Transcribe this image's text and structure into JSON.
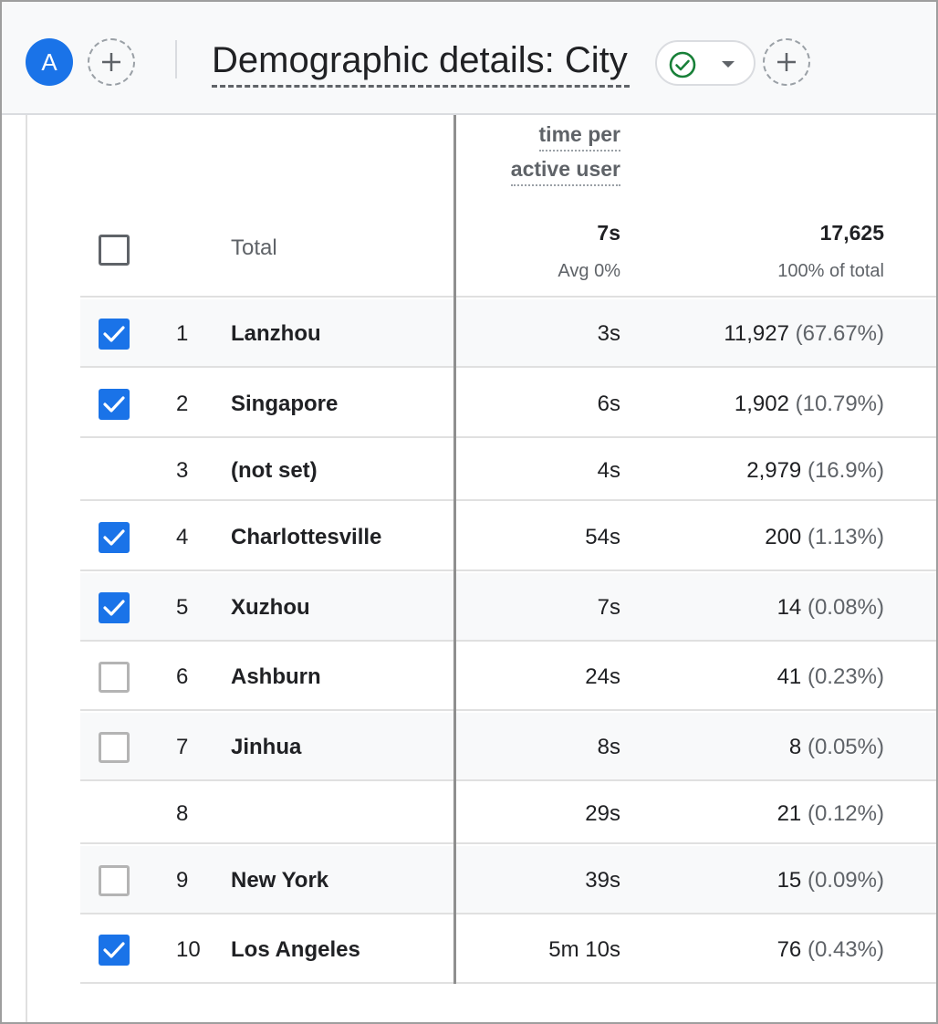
{
  "header": {
    "avatar_letter": "A",
    "title": "Demographic details: City"
  },
  "table": {
    "metric_header": [
      "time per",
      "active user"
    ],
    "total": {
      "label": "Total",
      "time": "7s",
      "time_sub": "Avg 0%",
      "users": "17,625",
      "users_sub": "100% of total"
    },
    "rows": [
      {
        "rank": "1",
        "city": "Lanzhou",
        "time": "3s",
        "users": "11,927",
        "pct": "(67.67%)",
        "checkbox": "checked"
      },
      {
        "rank": "2",
        "city": "Singapore",
        "time": "6s",
        "users": "1,902",
        "pct": "(10.79%)",
        "checkbox": "checked"
      },
      {
        "rank": "3",
        "city": "(not set)",
        "time": "4s",
        "users": "2,979",
        "pct": "(16.9%)",
        "checkbox": "none"
      },
      {
        "rank": "4",
        "city": "Charlottesville",
        "time": "54s",
        "users": "200",
        "pct": "(1.13%)",
        "checkbox": "checked"
      },
      {
        "rank": "5",
        "city": "Xuzhou",
        "time": "7s",
        "users": "14",
        "pct": "(0.08%)",
        "checkbox": "checked"
      },
      {
        "rank": "6",
        "city": "Ashburn",
        "time": "24s",
        "users": "41",
        "pct": "(0.23%)",
        "checkbox": "unchecked"
      },
      {
        "rank": "7",
        "city": "Jinhua",
        "time": "8s",
        "users": "8",
        "pct": "(0.05%)",
        "checkbox": "unchecked"
      },
      {
        "rank": "8",
        "city": "",
        "time": "29s",
        "users": "21",
        "pct": "(0.12%)",
        "checkbox": "none"
      },
      {
        "rank": "9",
        "city": "New York",
        "time": "39s",
        "users": "15",
        "pct": "(0.09%)",
        "checkbox": "unchecked"
      },
      {
        "rank": "10",
        "city": "Los Angeles",
        "time": "5m 10s",
        "users": "76",
        "pct": "(0.43%)",
        "checkbox": "checked"
      }
    ]
  },
  "colors": {
    "accent": "#1a73e8",
    "filter_check": "#188038"
  }
}
